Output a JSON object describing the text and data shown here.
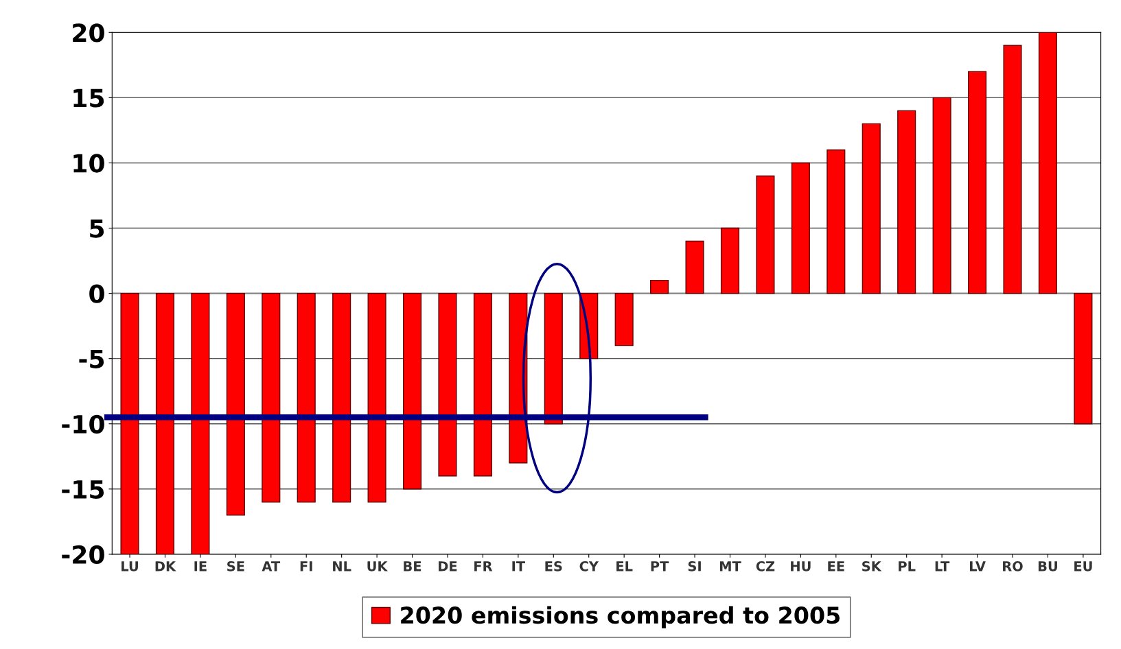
{
  "chart_data": {
    "type": "bar",
    "categories": [
      "LU",
      "DK",
      "IE",
      "SE",
      "AT",
      "FI",
      "NL",
      "UK",
      "BE",
      "DE",
      "FR",
      "IT",
      "ES",
      "CY",
      "EL",
      "PT",
      "SI",
      "MT",
      "CZ",
      "HU",
      "EE",
      "SK",
      "PL",
      "LT",
      "LV",
      "RO",
      "BU",
      "EU"
    ],
    "series": [
      {
        "name": "2020 emissions compared to 2005",
        "color": "#ff0000",
        "values": [
          -20,
          -20,
          -20,
          -17,
          -16,
          -16,
          -16,
          -16,
          -15,
          -14,
          -14,
          -13,
          -10,
          -5,
          -4,
          1,
          4,
          5,
          9,
          10,
          11,
          13,
          14,
          15,
          17,
          19,
          20,
          -10
        ]
      }
    ],
    "ylim": [
      -20,
      20
    ],
    "yticks": [
      -20,
      -15,
      -10,
      -5,
      0,
      5,
      10,
      15,
      20
    ],
    "grid": "y",
    "legend": "bottom",
    "ref_lines": [
      {
        "axis": "y",
        "value": -9.5,
        "color": "#000080"
      }
    ]
  }
}
